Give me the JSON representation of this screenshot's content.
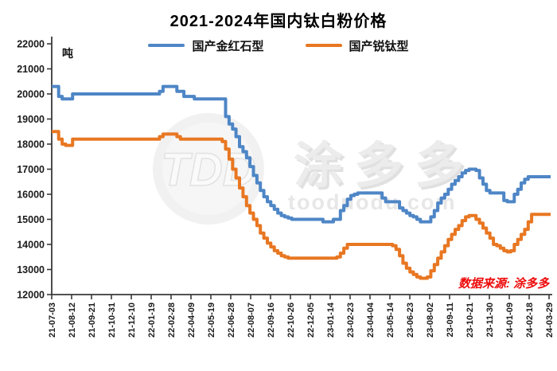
{
  "title": "2021-2024年国内钛白粉价格",
  "unit_label": "吨",
  "source_note": "数据来源: 涂多多",
  "watermark": {
    "logo": "TDD",
    "brand": "涂多多",
    "domain": "tooduodu.com"
  },
  "legend": [
    {
      "label": "国产金红石型",
      "color": "#4e86c6"
    },
    {
      "label": "国产锐钛型",
      "color": "#e87722"
    }
  ],
  "chart_data": {
    "type": "line",
    "step": true,
    "title": "2021-2024年国内钛白粉价格",
    "ylabel": "吨",
    "ylim": [
      12000,
      22000
    ],
    "y_tick_step": 1000,
    "grid": false,
    "legend_position": "top",
    "x_tick_labels": [
      "21-07-03",
      "21-08-12",
      "21-09-21",
      "21-10-31",
      "21-12-10",
      "22-01-19",
      "22-02-28",
      "22-04-09",
      "22-05-19",
      "22-06-28",
      "22-08-07",
      "22-09-16",
      "22-10-26",
      "22-12-05",
      "23-01-14",
      "23-02-23",
      "23-04-04",
      "23-05-14",
      "23-06-23",
      "23-08-02",
      "23-09-11",
      "23-10-21",
      "23-11-30",
      "24-01-09",
      "24-02-18",
      "24-03-29"
    ],
    "series": [
      {
        "name": "国产金红石型",
        "color": "#4e86c6",
        "values": [
          20300,
          20300,
          19900,
          19800,
          19800,
          19800,
          20000,
          20000,
          20000,
          20000,
          20000,
          20000,
          20000,
          20000,
          20000,
          20000,
          20000,
          20000,
          20000,
          20000,
          20000,
          20000,
          20000,
          20000,
          20000,
          20000,
          20000,
          20000,
          20000,
          20000,
          20000,
          20100,
          20300,
          20300,
          20300,
          20300,
          20100,
          20100,
          19900,
          19900,
          19900,
          19800,
          19800,
          19800,
          19800,
          19800,
          19800,
          19800,
          19800,
          19800,
          19100,
          18800,
          18600,
          18300,
          17900,
          17700,
          17450,
          17100,
          16750,
          16450,
          16150,
          15900,
          15700,
          15550,
          15400,
          15250,
          15150,
          15100,
          15050,
          15000,
          15000,
          15000,
          15000,
          15000,
          15000,
          15000,
          15000,
          15000,
          14900,
          14900,
          14900,
          15000,
          15000,
          15350,
          15550,
          15800,
          15950,
          16000,
          16050,
          16050,
          16050,
          16050,
          16050,
          16050,
          16050,
          15850,
          15700,
          15700,
          15700,
          15700,
          15450,
          15350,
          15250,
          15150,
          15100,
          15000,
          14900,
          14900,
          14900,
          15100,
          15350,
          15650,
          15850,
          16000,
          16200,
          16400,
          16550,
          16700,
          16850,
          16950,
          17000,
          17000,
          16950,
          16650,
          16400,
          16150,
          16050,
          16050,
          16050,
          16050,
          15750,
          15700,
          15700,
          16000,
          16200,
          16450,
          16600,
          16700,
          16700,
          16700,
          16700,
          16700,
          16700,
          16700
        ]
      },
      {
        "name": "国产锐钛型",
        "color": "#e87722",
        "values": [
          18500,
          18500,
          18200,
          18000,
          17950,
          17950,
          18200,
          18200,
          18200,
          18200,
          18200,
          18200,
          18200,
          18200,
          18200,
          18200,
          18200,
          18200,
          18200,
          18200,
          18200,
          18200,
          18200,
          18200,
          18200,
          18200,
          18200,
          18200,
          18200,
          18200,
          18200,
          18300,
          18400,
          18400,
          18400,
          18400,
          18300,
          18200,
          18200,
          18200,
          18200,
          18200,
          18200,
          18200,
          18200,
          18200,
          18200,
          18200,
          18200,
          18100,
          17800,
          17400,
          17000,
          16650,
          16250,
          15900,
          15550,
          15250,
          15000,
          14750,
          14450,
          14250,
          14050,
          13900,
          13750,
          13650,
          13550,
          13500,
          13450,
          13450,
          13450,
          13450,
          13450,
          13450,
          13450,
          13450,
          13450,
          13450,
          13450,
          13450,
          13450,
          13450,
          13500,
          13650,
          13850,
          14000,
          14000,
          14000,
          14000,
          14000,
          14000,
          14000,
          14000,
          14000,
          14000,
          14000,
          14000,
          14000,
          13950,
          13800,
          13550,
          13250,
          13050,
          12900,
          12800,
          12700,
          12650,
          12650,
          12700,
          12950,
          13200,
          13450,
          13700,
          13950,
          14200,
          14400,
          14600,
          14750,
          14950,
          15100,
          15150,
          15150,
          15000,
          14850,
          14650,
          14450,
          14250,
          14000,
          13950,
          13850,
          13750,
          13700,
          13750,
          14000,
          14200,
          14400,
          14600,
          14900,
          15200,
          15200,
          15200,
          15200,
          15200,
          15200
        ]
      }
    ]
  }
}
